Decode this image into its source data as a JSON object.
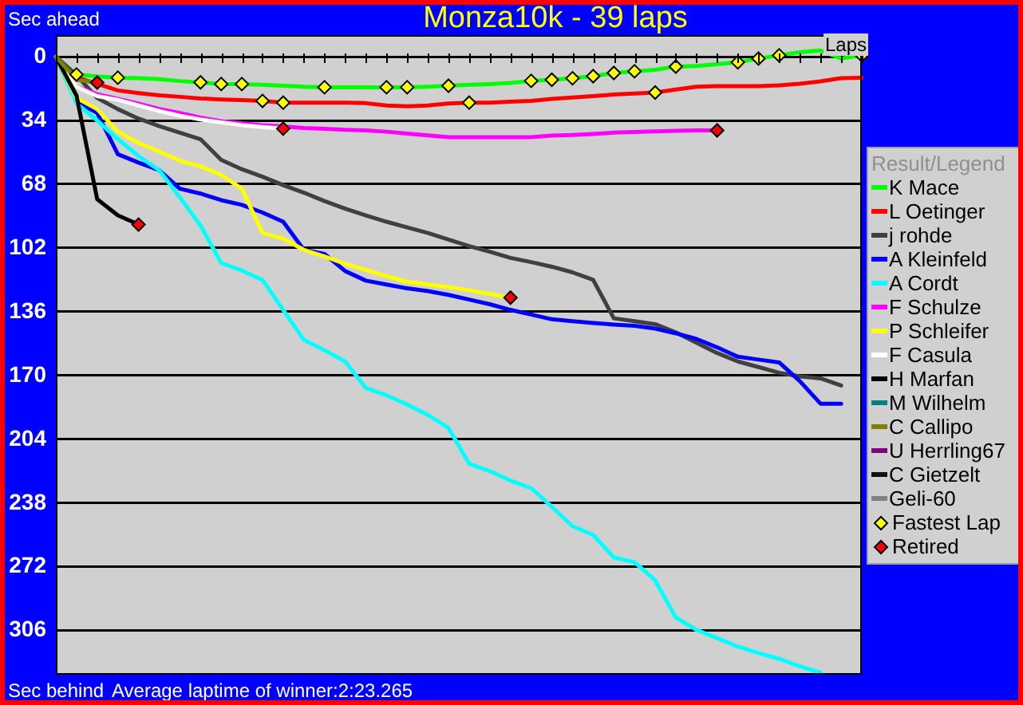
{
  "chart_data": {
    "type": "line",
    "title": "Monza10k - 39 laps",
    "xlabel": "Laps",
    "legend_title": "Result/Legend",
    "annotations": [
      "Sec ahead",
      "Sec behind",
      "Average laptime of winner:2:23.265"
    ],
    "categories": [
      null,
      null,
      null,
      null,
      null,
      null,
      null,
      null,
      null,
      null,
      null,
      null,
      null,
      null,
      null,
      null,
      null,
      null,
      null,
      null,
      null,
      null,
      null,
      null,
      null,
      null,
      null,
      null,
      null,
      null,
      null,
      null,
      null,
      null,
      null,
      null,
      null,
      null,
      null,
      null
    ],
    "ylim": [
      329.5,
      -11.5
    ],
    "yticks": [
      0,
      34,
      68,
      102,
      136,
      170,
      204,
      238,
      272,
      306
    ],
    "grid": "y",
    "tick_labels": "y",
    "legend": "right",
    "marker": "none",
    "series": [
      {
        "name": "K Mace",
        "color": "#00ff00",
        "values": [
          0,
          9.5,
          10.5,
          11.2,
          11.5,
          12,
          13,
          13.7,
          14.6,
          14.6,
          15,
          15.5,
          16,
          16.3,
          16.3,
          16.3,
          16.3,
          16.3,
          16,
          15.5,
          15,
          14.6,
          14,
          12.9,
          12.3,
          11.5,
          10.4,
          8.7,
          7.8,
          7,
          5.3,
          5,
          4,
          3,
          1,
          -0.7,
          -2.4,
          -3.3,
          1,
          -0.7
        ]
      },
      {
        "name": "L Oetinger",
        "color": "#ff0000",
        "values": [
          0,
          11,
          14.5,
          18,
          19.4,
          20.6,
          21.4,
          22.3,
          22.8,
          23.2,
          23.6,
          24.5,
          24.5,
          24.5,
          24.5,
          24.8,
          26,
          26.5,
          26,
          25,
          24.5,
          24.5,
          24,
          23.6,
          22.5,
          21.8,
          21,
          20.2,
          19.6,
          19.1,
          17.5,
          16,
          15.7,
          15.7,
          15.7,
          15.3,
          14.4,
          13.2,
          11.5,
          11.2
        ]
      },
      {
        "name": "j rohde",
        "color": "#404040",
        "values": [
          0,
          10,
          22,
          28,
          33,
          37,
          40.5,
          44,
          55,
          60,
          64,
          68.5,
          72.5,
          77,
          81,
          84.6,
          88,
          91,
          94,
          97.5,
          101,
          104,
          107.3,
          109.5,
          112,
          115,
          119,
          139.5,
          141,
          142.6,
          147,
          152.5,
          158,
          162.5,
          165.5,
          168.5,
          170.5,
          171.5,
          175.3,
          null
        ]
      },
      {
        "name": "A Kleinfeld",
        "color": "#0000ff",
        "values": [
          0,
          24,
          30,
          52,
          56.5,
          60.5,
          70.4,
          73,
          76.5,
          79,
          83.1,
          88,
          103,
          105.2,
          114.3,
          119.4,
          121.5,
          123.5,
          125,
          127,
          129.5,
          132,
          135,
          137.5,
          140,
          141,
          142,
          142.8,
          143.5,
          145,
          147.5,
          150.5,
          155,
          160,
          161.5,
          163,
          173,
          185,
          185,
          null
        ]
      },
      {
        "name": "A Cordt",
        "color": "#00ffff",
        "values": [
          0,
          25,
          34,
          44,
          53,
          60.5,
          75,
          90,
          110,
          114,
          119,
          135,
          151,
          156.5,
          162.5,
          176.6,
          180.5,
          185.5,
          191,
          198,
          217,
          221,
          226,
          230,
          240,
          250.3,
          255,
          267,
          269.5,
          279.2,
          299,
          305.6,
          310,
          314.5,
          318,
          321,
          325,
          328.4,
          null,
          null
        ]
      },
      {
        "name": "F Schulze",
        "color": "#ff00ff",
        "values": [
          0,
          16,
          20,
          22.5,
          25,
          27.9,
          30,
          32.5,
          34.4,
          35.5,
          36.5,
          37.2,
          38,
          38.5,
          39,
          39.3,
          40,
          41,
          42,
          42.9,
          42.9,
          42.9,
          42.9,
          42.9,
          42.1,
          41.8,
          41.2,
          40.5,
          40.2,
          39.8,
          39.5,
          39.3,
          39.3,
          null,
          null,
          null,
          null,
          null,
          null,
          null
        ]
      },
      {
        "name": "P Schleifer",
        "color": "#ffff00",
        "values": [
          0,
          22,
          28,
          40,
          46,
          50.6,
          55.5,
          58.5,
          63,
          70.4,
          94,
          97,
          103,
          106.5,
          110.5,
          113.7,
          117,
          120,
          121.5,
          122.8,
          124.5,
          126.5,
          128.5,
          null,
          null,
          null,
          null,
          null,
          null,
          null,
          null,
          null,
          null,
          null,
          null,
          null,
          null,
          null,
          null,
          null
        ]
      },
      {
        "name": "F Casula",
        "color": "#ffffff",
        "values": [
          0,
          16,
          21,
          23,
          26,
          29,
          31.5,
          33.5,
          35,
          36.5,
          37.5,
          38.4,
          null,
          null,
          null,
          null,
          null,
          null,
          null,
          null,
          null,
          null,
          null,
          null,
          null,
          null,
          null,
          null,
          null,
          null,
          null,
          null,
          null,
          null,
          null,
          null,
          null,
          null,
          null,
          null
        ]
      },
      {
        "name": "H Marfan",
        "color": "#000000",
        "values": [
          0,
          20.8,
          76,
          84.6,
          89.5,
          null,
          null,
          null,
          null,
          null,
          null,
          null,
          null,
          null,
          null,
          null,
          null,
          null,
          null,
          null,
          null,
          null,
          null,
          null,
          null,
          null,
          null,
          null,
          null,
          null,
          null,
          null,
          null,
          null,
          null,
          null,
          null,
          null,
          null,
          null
        ]
      },
      {
        "name": "M Wilhelm",
        "color": "#008080",
        "values": [
          null,
          null,
          null,
          null,
          null,
          null,
          null,
          null,
          null,
          null,
          null,
          null,
          null,
          null,
          null,
          null,
          null,
          null,
          null,
          null,
          null,
          null,
          null,
          null,
          null,
          null,
          null,
          null,
          null,
          null,
          null,
          null,
          null,
          null,
          null,
          null,
          null,
          null,
          null,
          null
        ]
      },
      {
        "name": "C Callipo",
        "color": "#808000",
        "values": [
          0,
          12.3,
          13.8,
          null,
          null,
          null,
          null,
          null,
          null,
          null,
          null,
          null,
          null,
          null,
          null,
          null,
          null,
          null,
          null,
          null,
          null,
          null,
          null,
          null,
          null,
          null,
          null,
          null,
          null,
          null,
          null,
          null,
          null,
          null,
          null,
          null,
          null,
          null,
          null,
          null
        ]
      },
      {
        "name": "U Herrling67",
        "color": "#800080",
        "values": [
          null,
          null,
          null,
          null,
          null,
          null,
          null,
          null,
          null,
          null,
          null,
          null,
          null,
          null,
          null,
          null,
          null,
          null,
          null,
          null,
          null,
          null,
          null,
          null,
          null,
          null,
          null,
          null,
          null,
          null,
          null,
          null,
          null,
          null,
          null,
          null,
          null,
          null,
          null,
          null
        ]
      },
      {
        "name": "C Gietzelt",
        "color": "#101010",
        "values": [
          null,
          null,
          null,
          null,
          null,
          null,
          null,
          null,
          null,
          null,
          null,
          null,
          null,
          null,
          null,
          null,
          null,
          null,
          null,
          null,
          null,
          null,
          null,
          null,
          null,
          null,
          null,
          null,
          null,
          null,
          null,
          null,
          null,
          null,
          null,
          null,
          null,
          null,
          null,
          null
        ]
      },
      {
        "name": "Geli-60",
        "color": "#808080",
        "values": [
          null,
          null,
          null,
          null,
          null,
          null,
          null,
          null,
          null,
          null,
          null,
          null,
          null,
          null,
          null,
          null,
          null,
          null,
          null,
          null,
          null,
          null,
          null,
          null,
          null,
          null,
          null,
          null,
          null,
          null,
          null,
          null,
          null,
          null,
          null,
          null,
          null,
          null,
          null,
          null
        ]
      },
      {
        "name": "Fastest Lap",
        "type": "scatter",
        "marker": "diamond",
        "color": "#ffff00",
        "values": [
          null,
          9.5,
          null,
          11.2,
          null,
          null,
          null,
          13.7,
          14.6,
          14.6,
          23.6,
          24.5,
          null,
          16.3,
          null,
          null,
          16.3,
          16.3,
          null,
          15.5,
          24.5,
          null,
          null,
          12.9,
          12.3,
          11.5,
          10.4,
          8.7,
          7.8,
          19.1,
          5.3,
          null,
          null,
          3,
          1,
          -0.7,
          null,
          null,
          null,
          -0.7
        ]
      },
      {
        "name": "Retired",
        "type": "scatter",
        "marker": "diamond",
        "color": "#ff0000",
        "values": [
          null,
          null,
          13.8,
          null,
          89.5,
          null,
          null,
          null,
          null,
          null,
          null,
          38.4,
          null,
          null,
          null,
          null,
          null,
          null,
          null,
          null,
          null,
          null,
          128.5,
          null,
          null,
          null,
          null,
          null,
          null,
          null,
          null,
          null,
          39.3,
          null,
          null,
          null,
          null,
          null,
          null,
          null
        ]
      }
    ]
  }
}
